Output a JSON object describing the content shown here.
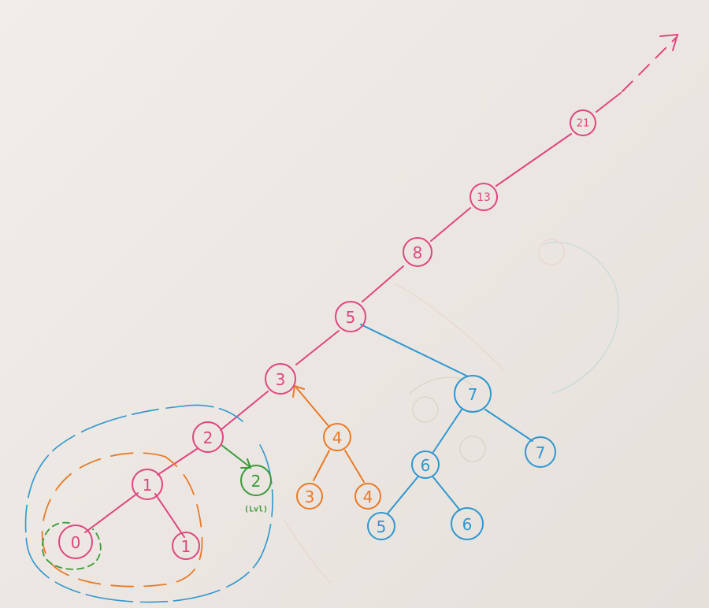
{
  "colors": {
    "pink": "#e0457f",
    "blue": "#2f97cf",
    "orange": "#ea7a26",
    "green": "#3a9a3a",
    "paper": "#efeae6"
  },
  "nodes": {
    "n21": "21",
    "n13": "13",
    "n8": "8",
    "n5": "5",
    "n3": "3",
    "n2": "2",
    "n1": "1",
    "n0": "0",
    "n1b": "1",
    "n2green": "2",
    "n4": "4",
    "n3orange": "3",
    "n4orange": "4",
    "n7": "7",
    "n7b": "7",
    "n6": "6",
    "n5blue": "5",
    "n6blue": "6"
  },
  "annotations": {
    "green_note": "(Lvl)"
  }
}
